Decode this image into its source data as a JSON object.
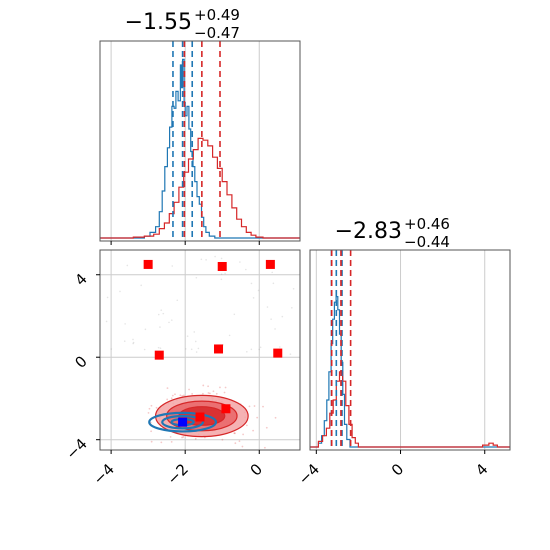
{
  "chart_data": [
    {
      "type": "histogram",
      "panel": "top-left",
      "title": {
        "main": "−1.55",
        "sup": "+0.49",
        "sub": "−0.47"
      },
      "xlim": [
        -4.3,
        1.1
      ],
      "x_ticks": [
        -4,
        -2,
        0
      ],
      "x_tick_labels_shown": false,
      "grid": true,
      "series": [
        {
          "color": "#1f77b4",
          "quantiles": [
            -2.33,
            -2.07,
            -1.81
          ],
          "bins": [
            [
              -4.3,
              0
            ],
            [
              -3.1,
              0.01
            ],
            [
              -2.95,
              0.03
            ],
            [
              -2.8,
              0.06
            ],
            [
              -2.7,
              0.14
            ],
            [
              -2.62,
              0.25
            ],
            [
              -2.55,
              0.38
            ],
            [
              -2.48,
              0.48
            ],
            [
              -2.42,
              0.59
            ],
            [
              -2.36,
              0.7
            ],
            [
              -2.3,
              0.69
            ],
            [
              -2.25,
              0.78
            ],
            [
              -2.19,
              0.73
            ],
            [
              -2.13,
              0.92
            ],
            [
              -2.1,
              0.8
            ],
            [
              -2.07,
              0.95
            ],
            [
              -2.03,
              0.72
            ],
            [
              -2.0,
              0.65
            ],
            [
              -1.95,
              0.7
            ],
            [
              -1.9,
              0.58
            ],
            [
              -1.85,
              0.46
            ],
            [
              -1.79,
              0.38
            ],
            [
              -1.74,
              0.3
            ],
            [
              -1.68,
              0.22
            ],
            [
              -1.62,
              0.18
            ],
            [
              -1.56,
              0.11
            ],
            [
              -1.5,
              0.06
            ],
            [
              -1.44,
              0.03
            ],
            [
              -1.35,
              0.01
            ],
            [
              -1.2,
              0
            ]
          ]
        },
        {
          "color": "#d62728",
          "quantiles": [
            -2.02,
            -1.55,
            -1.06
          ],
          "bins": [
            [
              -4.3,
              0
            ],
            [
              -3.4,
              0.005
            ],
            [
              -3.1,
              0.01
            ],
            [
              -2.85,
              0.02
            ],
            [
              -2.7,
              0.05
            ],
            [
              -2.56,
              0.08
            ],
            [
              -2.43,
              0.13
            ],
            [
              -2.3,
              0.19
            ],
            [
              -2.17,
              0.27
            ],
            [
              -2.04,
              0.35
            ],
            [
              -1.91,
              0.42
            ],
            [
              -1.78,
              0.47
            ],
            [
              -1.65,
              0.53
            ],
            [
              -1.52,
              0.52
            ],
            [
              -1.39,
              0.49
            ],
            [
              -1.26,
              0.43
            ],
            [
              -1.13,
              0.37
            ],
            [
              -1.0,
              0.3
            ],
            [
              -0.87,
              0.23
            ],
            [
              -0.74,
              0.16
            ],
            [
              -0.61,
              0.1
            ],
            [
              -0.48,
              0.06
            ],
            [
              -0.35,
              0.03
            ],
            [
              -0.22,
              0.015
            ],
            [
              -0.09,
              0.005
            ],
            [
              0.1,
              0
            ]
          ]
        }
      ]
    },
    {
      "type": "scatter",
      "panel": "bottom-left",
      "xlim": [
        -4.3,
        1.1
      ],
      "ylim": [
        -4.5,
        5.2
      ],
      "x_ticks": [
        -4,
        -2,
        0
      ],
      "x_tick_labels": [
        "−4",
        "−2",
        "0"
      ],
      "y_ticks": [
        -4,
        0,
        4
      ],
      "y_tick_labels": [
        "−4",
        "0",
        "4"
      ],
      "grid": true,
      "markers_red": [
        [
          -3.0,
          4.5
        ],
        [
          -1.0,
          4.4
        ],
        [
          0.3,
          4.5
        ],
        [
          -2.7,
          0.1
        ],
        [
          -1.1,
          0.4
        ],
        [
          0.5,
          0.2
        ],
        [
          -1.6,
          -2.9
        ],
        [
          -0.9,
          -2.5
        ]
      ],
      "markers_blue": [
        [
          -2.07,
          -3.15
        ]
      ],
      "contours": [
        {
          "color": "#d62728",
          "cx": -1.55,
          "cy": -2.85,
          "rx": [
            1.25,
            0.95,
            0.62
          ],
          "ry": [
            1.0,
            0.72,
            0.45
          ]
        },
        {
          "color": "#1f77b4",
          "cx": -2.07,
          "cy": -3.15,
          "rx": [
            0.9,
            0.55,
            0.3
          ],
          "ry": [
            0.45,
            0.3,
            0.15
          ]
        }
      ]
    },
    {
      "type": "histogram",
      "panel": "bottom-right",
      "title": {
        "main": "−2.83",
        "sup": "+0.46",
        "sub": "−0.44"
      },
      "xlim": [
        -4.3,
        5.2
      ],
      "x_ticks": [
        -4,
        0,
        4
      ],
      "x_tick_labels": [
        "−4",
        "0",
        "4"
      ],
      "grid": true,
      "series": [
        {
          "color": "#1f77b4",
          "quantiles": [
            -3.28,
            -3.05,
            -2.78
          ],
          "bins": [
            [
              -4.3,
              0
            ],
            [
              -3.9,
              0.02
            ],
            [
              -3.75,
              0.06
            ],
            [
              -3.62,
              0.14
            ],
            [
              -3.5,
              0.25
            ],
            [
              -3.4,
              0.4
            ],
            [
              -3.3,
              0.55
            ],
            [
              -3.22,
              0.68
            ],
            [
              -3.14,
              0.77
            ],
            [
              -3.06,
              0.8
            ],
            [
              -2.98,
              0.73
            ],
            [
              -2.9,
              0.6
            ],
            [
              -2.82,
              0.45
            ],
            [
              -2.74,
              0.28
            ],
            [
              -2.66,
              0.12
            ],
            [
              -2.55,
              0.04
            ],
            [
              -2.4,
              0
            ]
          ]
        },
        {
          "color": "#d62728",
          "quantiles": [
            -3.27,
            -2.83,
            -2.37
          ],
          "bins": [
            [
              -4.3,
              0
            ],
            [
              -3.9,
              0.03
            ],
            [
              -3.7,
              0.06
            ],
            [
              -3.52,
              0.1
            ],
            [
              -3.36,
              0.18
            ],
            [
              -3.2,
              0.25
            ],
            [
              -3.05,
              0.35
            ],
            [
              -2.9,
              0.4
            ],
            [
              -2.75,
              0.35
            ],
            [
              -2.6,
              0.22
            ],
            [
              -2.45,
              0.12
            ],
            [
              -2.3,
              0.05
            ],
            [
              -2.15,
              0.02
            ],
            [
              -2.0,
              0
            ],
            [
              3.9,
              0.01
            ],
            [
              4.2,
              0.02
            ],
            [
              4.4,
              0.01
            ],
            [
              4.6,
              0
            ]
          ]
        }
      ]
    }
  ]
}
